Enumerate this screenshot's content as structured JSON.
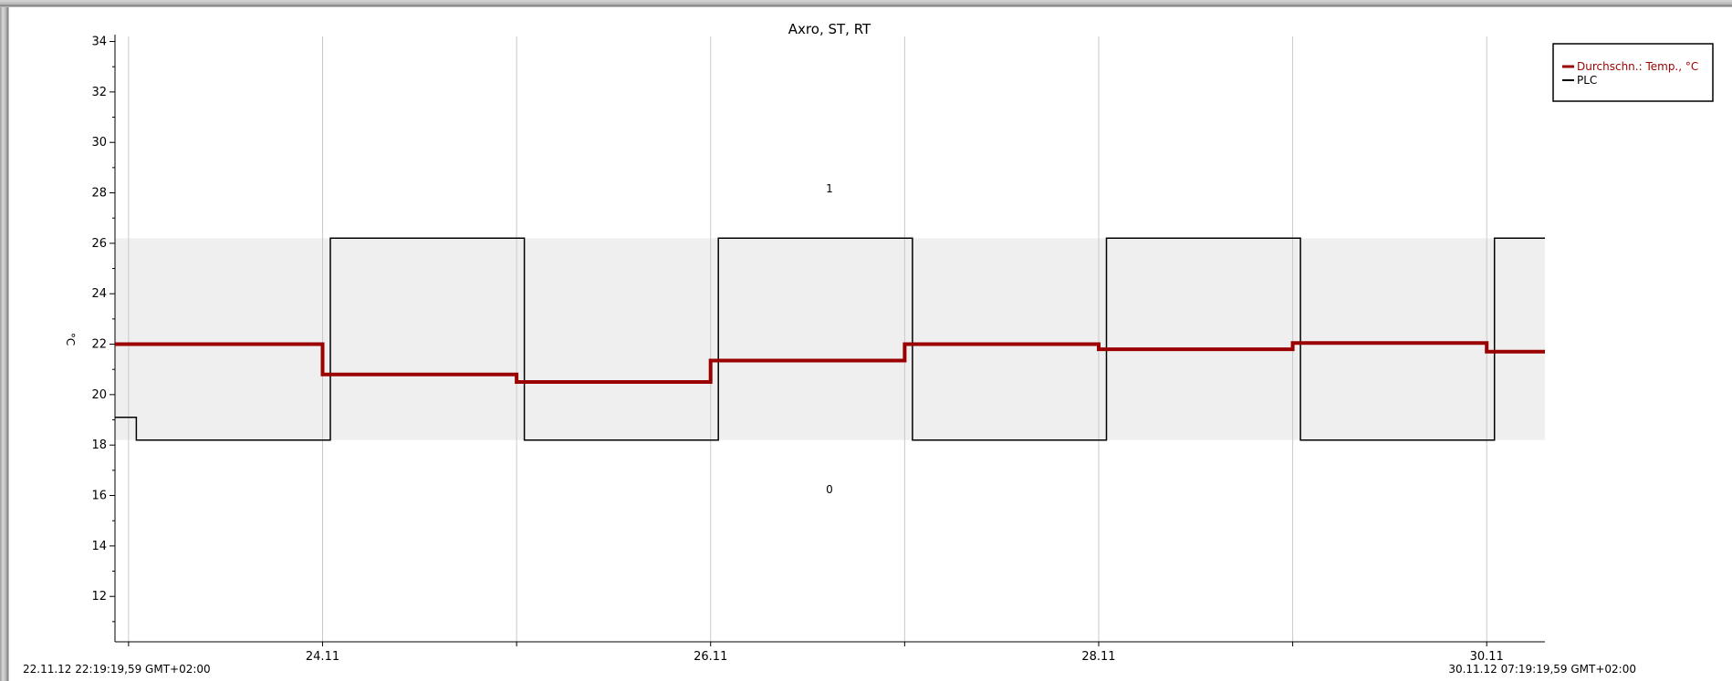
{
  "chart_data": {
    "type": "line",
    "title": "Axro, ST, RT",
    "ylabel": "°C",
    "xlabel": "",
    "ylim": [
      10.2,
      34.2
    ],
    "y_ticks": [
      12,
      14,
      16,
      18,
      20,
      22,
      24,
      26,
      28,
      30,
      32,
      34
    ],
    "x_tick_labels": [
      "24.11",
      "26.11",
      "28.11",
      "30.11"
    ],
    "x_start_label": "22.11.12 22:19:19,59 GMT+02:00",
    "x_end_label": "30.11.12 07:19:19,59 GMT+02:00",
    "x_range": [
      22.93,
      30.3
    ],
    "vertical_grid_x": [
      23.0,
      24.0,
      25.0,
      26.0,
      27.0,
      28.0,
      29.0,
      30.0
    ],
    "grid": true,
    "legend_position": "top-right",
    "state_band": {
      "low": 18.2,
      "high": 26.2,
      "label_high": "1",
      "label_low": "0"
    },
    "series": [
      {
        "name": "Durchschn.: Temp., °C",
        "color": "#9b0000",
        "step": true,
        "x": [
          22.93,
          24.0,
          24.0,
          25.0,
          25.0,
          26.0,
          26.0,
          27.0,
          27.0,
          28.0,
          28.0,
          29.0,
          29.0,
          30.0,
          30.0,
          30.3
        ],
        "values": [
          22.0,
          22.0,
          20.8,
          20.8,
          20.5,
          20.5,
          21.35,
          21.35,
          22.0,
          22.0,
          21.8,
          21.8,
          22.05,
          22.05,
          21.7,
          21.7
        ]
      },
      {
        "name": "PLC",
        "color": "#000000",
        "step": true,
        "x": [
          22.93,
          23.04,
          23.04,
          24.04,
          24.04,
          25.04,
          25.04,
          26.04,
          26.04,
          27.04,
          27.04,
          28.04,
          28.04,
          29.04,
          29.04,
          30.04,
          30.04,
          30.3
        ],
        "values": [
          19.1,
          19.1,
          18.2,
          18.2,
          26.2,
          26.2,
          18.2,
          18.2,
          26.2,
          26.2,
          18.2,
          18.2,
          26.2,
          26.2,
          18.2,
          18.2,
          26.2,
          26.2
        ]
      }
    ]
  }
}
